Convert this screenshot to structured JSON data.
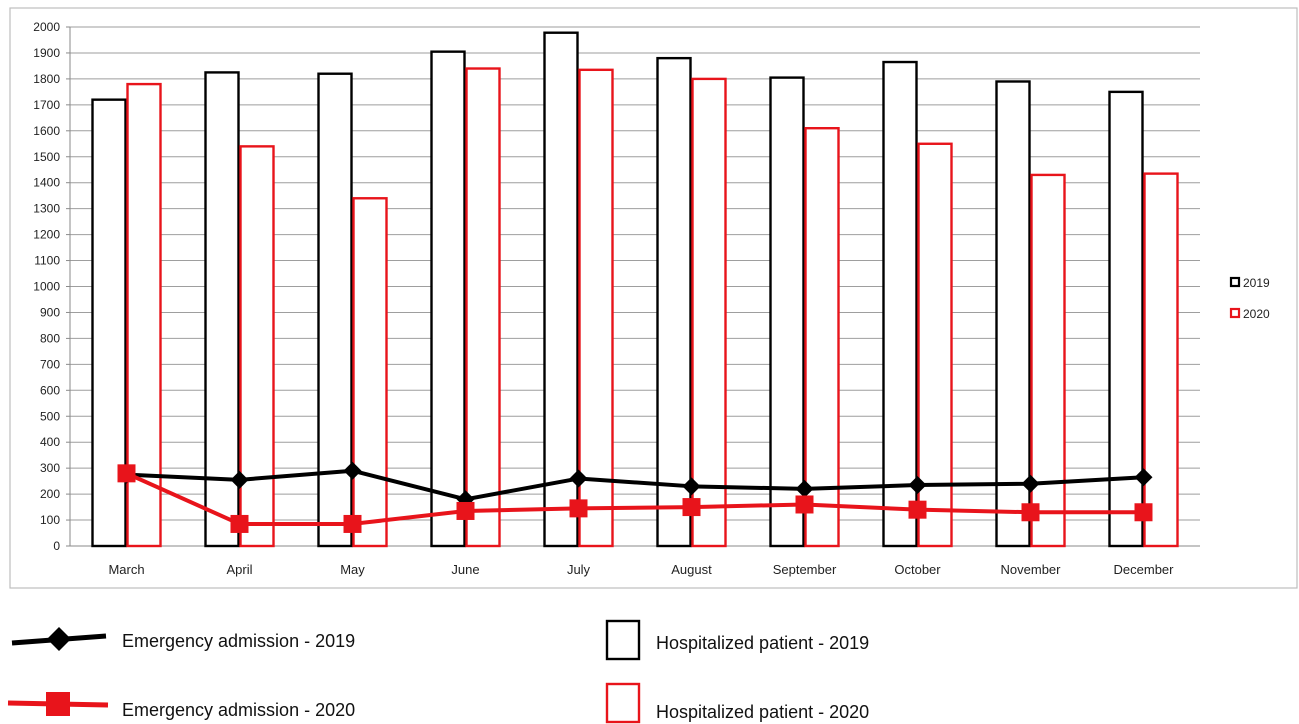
{
  "chart_data": {
    "type": "bar",
    "categories": [
      "March",
      "April",
      "May",
      "June",
      "July",
      "August",
      "September",
      "October",
      "November",
      "December"
    ],
    "y_ticks": [
      "0",
      "100",
      "200",
      "300",
      "400",
      "500",
      "600",
      "700",
      "800",
      "900",
      "1000",
      "1100",
      "1200",
      "1300",
      "1400",
      "1500",
      "1600",
      "1700",
      "1800",
      "1900",
      "2000"
    ],
    "ylim": [
      0,
      2000
    ],
    "grid": true,
    "bar_series": [
      {
        "name": "Hospitalized patient - 2019",
        "short_name": "2019",
        "color": "#000000",
        "fill": "#ffffff",
        "values": [
          1720,
          1825,
          1820,
          1905,
          1978,
          1880,
          1805,
          1865,
          1790,
          1750
        ]
      },
      {
        "name": "Hospitalized patient - 2020",
        "short_name": "2020",
        "color": "#e8141b",
        "fill": "#ffffff",
        "values": [
          1780,
          1540,
          1340,
          1840,
          1835,
          1800,
          1610,
          1550,
          1430,
          1435
        ]
      }
    ],
    "line_series": [
      {
        "name": "Emergency admission - 2019",
        "color": "#000000",
        "marker": "diamond",
        "values": [
          275,
          255,
          290,
          180,
          260,
          230,
          220,
          235,
          240,
          265
        ]
      },
      {
        "name": "Emergency admission - 2020",
        "color": "#e8141b",
        "marker": "square",
        "values": [
          280,
          85,
          85,
          135,
          145,
          150,
          160,
          140,
          130,
          130
        ]
      }
    ],
    "side_legend_placement": "right",
    "bottom_legend_placement": "bottom"
  }
}
